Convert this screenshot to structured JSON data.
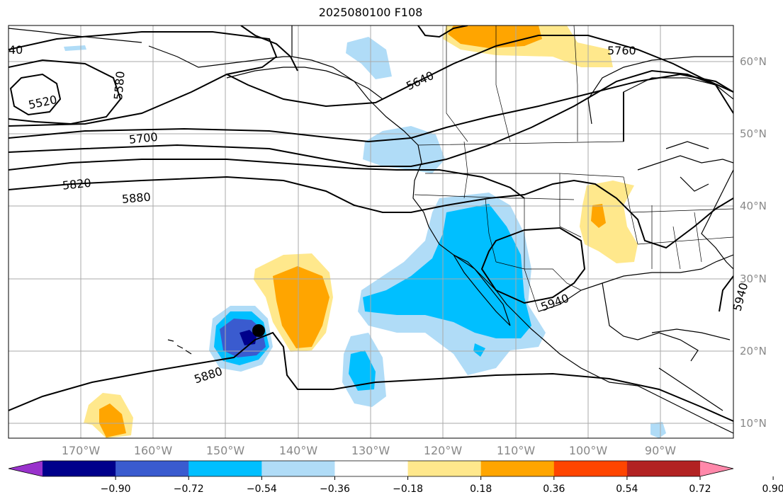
{
  "title": "2025080100 F108",
  "lat_labels": [
    "60°N",
    "50°N",
    "40°N",
    "30°N",
    "20°N",
    "10°N"
  ],
  "lon_labels": [
    "170°W",
    "160°W",
    "150°W",
    "140°W",
    "130°W",
    "120°W",
    "110°W",
    "100°W",
    "90°W"
  ],
  "colorbar": {
    "ticks": [
      "−0.90",
      "−0.72",
      "−0.54",
      "−0.36",
      "−0.18",
      "0.18",
      "0.36",
      "0.54",
      "0.72",
      "0.90"
    ],
    "colors": [
      "#9932cc",
      "#00008b",
      "#3a5bcf",
      "#00bfff",
      "#b0dcf7",
      "#ffffff",
      "#ffe88c",
      "#ffa500",
      "#ff4500",
      "#b22222",
      "#ff88aa"
    ]
  },
  "contour_labels": [
    "5520",
    "5580",
    "40",
    "5700",
    "5820",
    "5880",
    "5640",
    "5760",
    "5940",
    "5880",
    "5940"
  ],
  "colors": {
    "ocean": "#ffffff",
    "grid": "#aaaaaa",
    "contour": "#000000",
    "marker": "#000000"
  }
}
